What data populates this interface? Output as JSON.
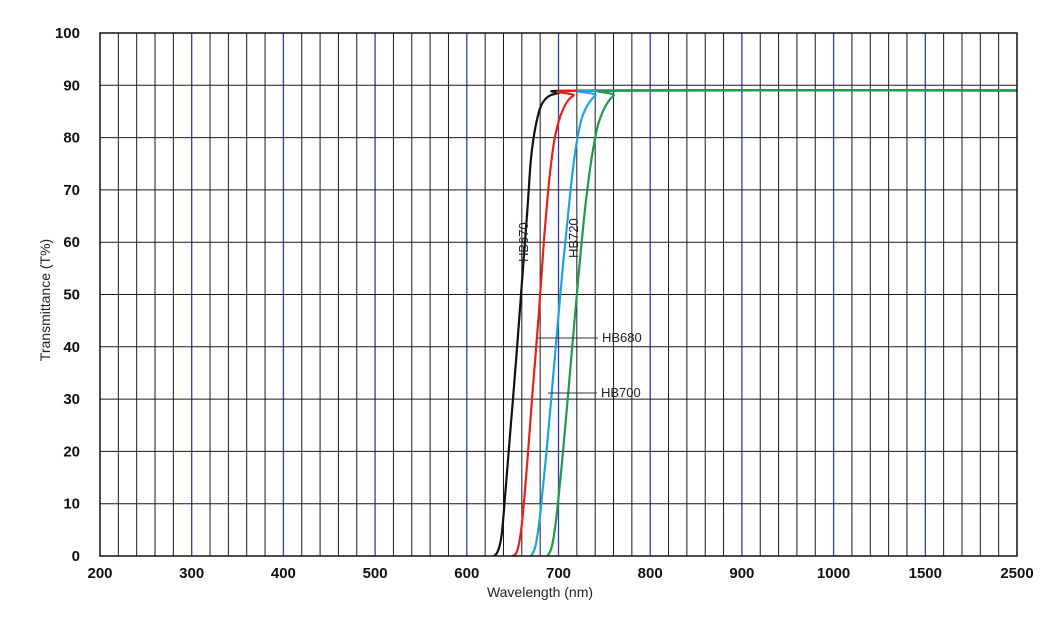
{
  "chart_data": {
    "type": "line",
    "title": "",
    "xlabel": "Wavelength (nm)",
    "ylabel": "Transmittance (T%)",
    "ylim": [
      0,
      100
    ],
    "yticks": [
      "0",
      "10",
      "20",
      "30",
      "40",
      "50",
      "60",
      "70",
      "80",
      "90",
      "100"
    ],
    "xticks": [
      "200",
      "300",
      "400",
      "500",
      "600",
      "700",
      "800",
      "900",
      "1000",
      "1500",
      "2500"
    ],
    "x_scale": "piecewise",
    "grid": true,
    "colors": {
      "grid_major": "#2f3fa8",
      "grid_minor": "#1a1a1a",
      "frame": "#111111"
    },
    "series": [
      {
        "name": "HB670",
        "color": "#111111",
        "points": [
          [
            630,
            0
          ],
          [
            634,
            1
          ],
          [
            638,
            4
          ],
          [
            642,
            12
          ],
          [
            648,
            25
          ],
          [
            654,
            38
          ],
          [
            660,
            52
          ],
          [
            666,
            66
          ],
          [
            670,
            76
          ],
          [
            676,
            83
          ],
          [
            684,
            87
          ],
          [
            700,
            88.5
          ],
          [
            740,
            89
          ],
          [
            2500,
            89
          ]
        ]
      },
      {
        "name": "HB680",
        "color": "#e2231a",
        "points": [
          [
            650,
            0
          ],
          [
            655,
            1
          ],
          [
            660,
            6
          ],
          [
            666,
            18
          ],
          [
            672,
            32
          ],
          [
            678,
            45
          ],
          [
            684,
            60
          ],
          [
            690,
            72
          ],
          [
            696,
            80
          ],
          [
            704,
            85
          ],
          [
            716,
            88
          ],
          [
            740,
            89
          ],
          [
            2500,
            89
          ]
        ]
      },
      {
        "name": "HB700",
        "color": "#1ea3dc",
        "points": [
          [
            670,
            0
          ],
          [
            675,
            2
          ],
          [
            680,
            8
          ],
          [
            688,
            22
          ],
          [
            696,
            38
          ],
          [
            704,
            54
          ],
          [
            712,
            68
          ],
          [
            718,
            77
          ],
          [
            726,
            84
          ],
          [
            740,
            88
          ],
          [
            760,
            89
          ],
          [
            2500,
            89
          ]
        ]
      },
      {
        "name": "HB720",
        "color": "#1e9a4a",
        "points": [
          [
            688,
            0
          ],
          [
            693,
            2
          ],
          [
            698,
            8
          ],
          [
            706,
            22
          ],
          [
            714,
            38
          ],
          [
            722,
            54
          ],
          [
            730,
            68
          ],
          [
            738,
            78
          ],
          [
            746,
            84
          ],
          [
            760,
            88
          ],
          [
            780,
            89
          ],
          [
            2500,
            89
          ]
        ]
      }
    ]
  }
}
